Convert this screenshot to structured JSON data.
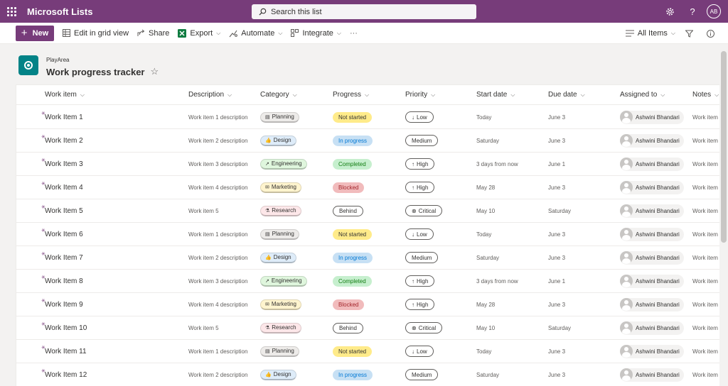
{
  "app": {
    "title": "Microsoft Lists",
    "user_initials": "AB",
    "brand_color": "#773c7a"
  },
  "search": {
    "placeholder": "Search this list"
  },
  "toolbar": {
    "new_label": "New",
    "edit_grid_label": "Edit in grid view",
    "share_label": "Share",
    "export_label": "Export",
    "automate_label": "Automate",
    "integrate_label": "Integrate",
    "more_label": "···",
    "view_label": "All Items"
  },
  "list": {
    "site": "PlayArea",
    "title": "Work progress tracker"
  },
  "columns": [
    "Work item",
    "Description",
    "Category",
    "Progress",
    "Priority",
    "Start date",
    "Due date",
    "Assigned to",
    "Notes"
  ],
  "category_styles": {
    "Planning": {
      "bg": "#edebe9",
      "fg": "#323130",
      "icon": "▤"
    },
    "Design": {
      "bg": "#deecf9",
      "fg": "#323130",
      "icon": "👍"
    },
    "Engineering": {
      "bg": "#dff6dd",
      "fg": "#323130",
      "icon": "↗"
    },
    "Marketing": {
      "bg": "#fff4ce",
      "fg": "#323130",
      "icon": "✉"
    },
    "Research": {
      "bg": "#fde7e9",
      "fg": "#323130",
      "icon": "⚗"
    }
  },
  "progress_styles": {
    "Not started": {
      "bg": "#ffeb8a",
      "fg": "#323130",
      "border": "none"
    },
    "In progress": {
      "bg": "#c7e0f4",
      "fg": "#0078d4",
      "border": "none"
    },
    "Completed": {
      "bg": "#c6efce",
      "fg": "#107c10",
      "border": "none"
    },
    "Blocked": {
      "bg": "#f1bbbc",
      "fg": "#a4262c",
      "border": "none"
    },
    "Behind": {
      "bg": "#ffffff",
      "fg": "#323130",
      "border": "1px solid #605e5c"
    }
  },
  "priority_icons": {
    "Low": "↓",
    "Medium": "",
    "High": "↑",
    "Critical": "⊗"
  },
  "rows": [
    {
      "item": "Work Item 1",
      "desc": "Work item 1 description",
      "cat": "Planning",
      "prog": "Not started",
      "prio": "Low",
      "start": "Today",
      "due": "June 3",
      "assigned": "Ashwini Bhandari",
      "notes": "Work item"
    },
    {
      "item": "Work Item 2",
      "desc": "Work item 2 description",
      "cat": "Design",
      "prog": "In progress",
      "prio": "Medium",
      "start": "Saturday",
      "due": "June 3",
      "assigned": "Ashwini Bhandari",
      "notes": "Work item"
    },
    {
      "item": "Work Item 3",
      "desc": "Work item 3 description",
      "cat": "Engineering",
      "prog": "Completed",
      "prio": "High",
      "start": "3 days from now",
      "due": "June 1",
      "assigned": "Ashwini Bhandari",
      "notes": "Work item"
    },
    {
      "item": "Work Item 4",
      "desc": "Work item 4 description",
      "cat": "Marketing",
      "prog": "Blocked",
      "prio": "High",
      "start": "May 28",
      "due": "June 3",
      "assigned": "Ashwini Bhandari",
      "notes": "Work item"
    },
    {
      "item": "Work Item 5",
      "desc": "Work item 5",
      "cat": "Research",
      "prog": "Behind",
      "prio": "Critical",
      "start": "May 10",
      "due": "Saturday",
      "assigned": "Ashwini Bhandari",
      "notes": "Work item"
    },
    {
      "item": "Work Item 6",
      "desc": "Work item 1 description",
      "cat": "Planning",
      "prog": "Not started",
      "prio": "Low",
      "start": "Today",
      "due": "June 3",
      "assigned": "Ashwini Bhandari",
      "notes": "Work item"
    },
    {
      "item": "Work Item 7",
      "desc": "Work item 2 description",
      "cat": "Design",
      "prog": "In progress",
      "prio": "Medium",
      "start": "Saturday",
      "due": "June 3",
      "assigned": "Ashwini Bhandari",
      "notes": "Work item"
    },
    {
      "item": "Work Item 8",
      "desc": "Work item 3 description",
      "cat": "Engineering",
      "prog": "Completed",
      "prio": "High",
      "start": "3 days from now",
      "due": "June 1",
      "assigned": "Ashwini Bhandari",
      "notes": "Work item"
    },
    {
      "item": "Work Item 9",
      "desc": "Work item 4 description",
      "cat": "Marketing",
      "prog": "Blocked",
      "prio": "High",
      "start": "May 28",
      "due": "June 3",
      "assigned": "Ashwini Bhandari",
      "notes": "Work item"
    },
    {
      "item": "Work Item 10",
      "desc": "Work item 5",
      "cat": "Research",
      "prog": "Behind",
      "prio": "Critical",
      "start": "May 10",
      "due": "Saturday",
      "assigned": "Ashwini Bhandari",
      "notes": "Work item"
    },
    {
      "item": "Work Item 11",
      "desc": "Work item 1 description",
      "cat": "Planning",
      "prog": "Not started",
      "prio": "Low",
      "start": "Today",
      "due": "June 3",
      "assigned": "Ashwini Bhandari",
      "notes": "Work item"
    },
    {
      "item": "Work Item 12",
      "desc": "Work item 2 description",
      "cat": "Design",
      "prog": "In progress",
      "prio": "Medium",
      "start": "Saturday",
      "due": "June 3",
      "assigned": "Ashwini Bhandari",
      "notes": "Work item"
    }
  ]
}
